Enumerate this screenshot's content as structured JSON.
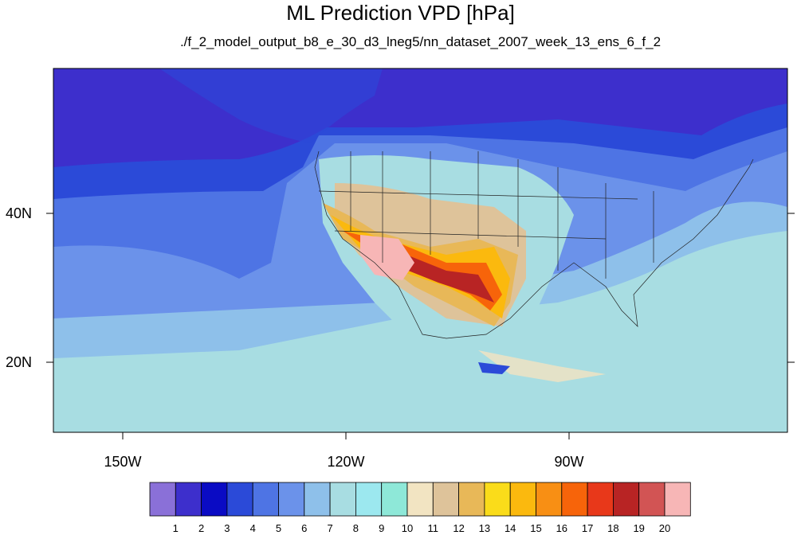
{
  "title": "ML Prediction VPD [hPa]",
  "subtitle": "./f_2_model_output_b8_e_30_d3_lneg5/nn_dataset_2007_week_13_ens_6_f_2",
  "axes": {
    "lon_labels": [
      "150W",
      "120W",
      "90W"
    ],
    "lat_labels": [
      "40N",
      "20N"
    ]
  },
  "colorbar": {
    "colors": [
      "#8a70d8",
      "#3d2fcc",
      "#0a0bc4",
      "#2b4ad8",
      "#4e74e4",
      "#6b92ea",
      "#8ec0ea",
      "#a8dde2",
      "#9ce8ef",
      "#8ee8d8",
      "#f2e4c2",
      "#dec39a",
      "#e8b858",
      "#fadc1a",
      "#fbb90e",
      "#f88f14",
      "#f7640a",
      "#e8381a",
      "#b82424",
      "#d25454",
      "#f7b6b6"
    ],
    "labels": [
      "1",
      "2",
      "3",
      "4",
      "5",
      "6",
      "7",
      "8",
      "9",
      "10",
      "11",
      "12",
      "13",
      "14",
      "15",
      "16",
      "17",
      "18",
      "19",
      "20"
    ]
  }
}
